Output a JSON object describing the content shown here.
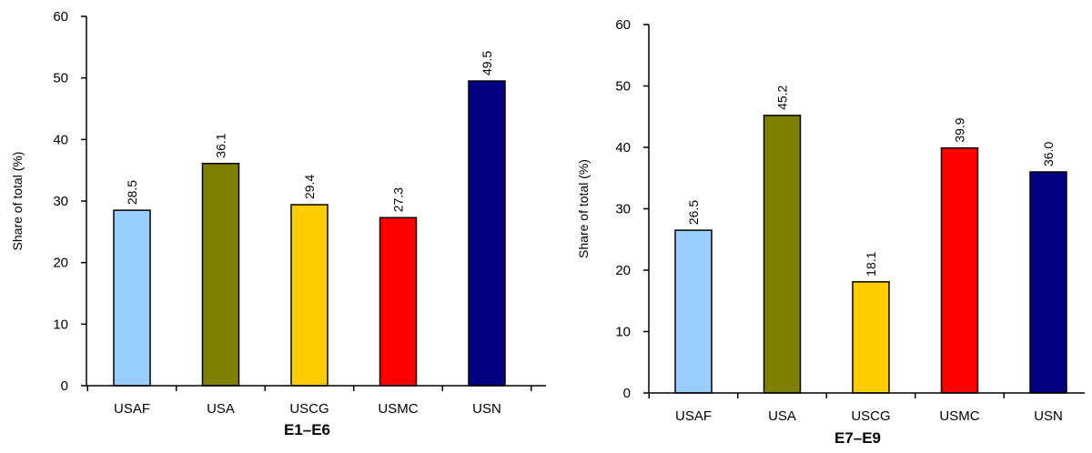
{
  "chart_data": [
    {
      "type": "bar",
      "categories": [
        "USAF",
        "USA",
        "USCG",
        "USMC",
        "USN"
      ],
      "values": [
        28.5,
        36.1,
        29.4,
        27.3,
        49.5
      ],
      "value_labels": [
        "28.5",
        "36.1",
        "29.4",
        "27.3",
        "49.5"
      ],
      "colors": [
        "#99ccff",
        "#808000",
        "#ffcc00",
        "#ff0000",
        "#000080"
      ],
      "xlabel": "E1–E6",
      "ylabel": "Share of total (%)",
      "ylim": [
        0,
        60
      ],
      "yticks": [
        0,
        10,
        20,
        30,
        40,
        50,
        60
      ],
      "grid": false,
      "legend": "none"
    },
    {
      "type": "bar",
      "categories": [
        "USAF",
        "USA",
        "USCG",
        "USMC",
        "USN"
      ],
      "values": [
        26.5,
        45.2,
        18.1,
        39.9,
        36.0
      ],
      "value_labels": [
        "26.5",
        "45.2",
        "18.1",
        "39.9",
        "36.0"
      ],
      "colors": [
        "#99ccff",
        "#808000",
        "#ffcc00",
        "#ff0000",
        "#000080"
      ],
      "xlabel": "E7–E9",
      "ylabel": "Share of total (%)",
      "ylim": [
        0,
        60
      ],
      "yticks": [
        0,
        10,
        20,
        30,
        40,
        50,
        60
      ],
      "grid": false,
      "legend": "none"
    }
  ]
}
